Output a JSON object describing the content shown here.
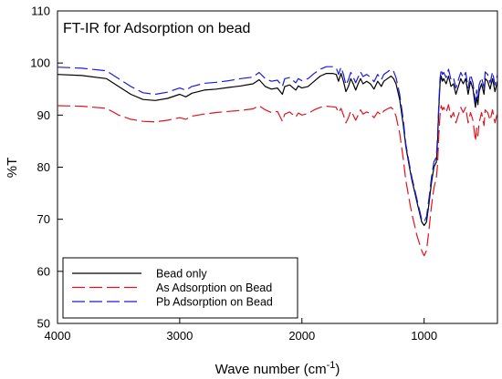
{
  "chart_data": {
    "type": "line",
    "title": "FT-IR for Adsorption on bead",
    "xlabel_main": "Wave number (cm",
    "xlabel_sup": "-1",
    "xlabel_close": ")",
    "ylabel": "%T",
    "xlim": [
      4000,
      400
    ],
    "ylim": [
      50,
      110
    ],
    "x_reversed": true,
    "x_ticks": [
      4000,
      3000,
      2000,
      1000
    ],
    "y_ticks": [
      50,
      60,
      70,
      80,
      90,
      100,
      110
    ],
    "x_tick_labels": [
      "4000",
      "3000",
      "2000",
      "1000"
    ],
    "y_tick_labels": [
      "50",
      "60",
      "70",
      "80",
      "90",
      "100",
      "110"
    ],
    "grid": false,
    "legend_position": "bottom-left",
    "series": [
      {
        "name": "Bead only",
        "color": "#000000",
        "dash": "solid",
        "points": [
          [
            4000,
            97.8
          ],
          [
            3800,
            97.6
          ],
          [
            3600,
            97.0
          ],
          [
            3500,
            95.5
          ],
          [
            3400,
            94.0
          ],
          [
            3300,
            93.0
          ],
          [
            3200,
            92.8
          ],
          [
            3100,
            93.2
          ],
          [
            3000,
            94.0
          ],
          [
            2950,
            93.5
          ],
          [
            2900,
            94.2
          ],
          [
            2800,
            94.8
          ],
          [
            2700,
            95.0
          ],
          [
            2600,
            95.3
          ],
          [
            2500,
            95.6
          ],
          [
            2400,
            96.0
          ],
          [
            2350,
            96.8
          ],
          [
            2300,
            95.5
          ],
          [
            2250,
            95.0
          ],
          [
            2200,
            95.2
          ],
          [
            2160,
            94.0
          ],
          [
            2140,
            95.5
          ],
          [
            2100,
            95.8
          ],
          [
            2050,
            94.8
          ],
          [
            2030,
            95.6
          ],
          [
            2000,
            95.2
          ],
          [
            1950,
            95.5
          ],
          [
            1900,
            96.5
          ],
          [
            1850,
            97.5
          ],
          [
            1800,
            98.0
          ],
          [
            1750,
            98.0
          ],
          [
            1720,
            97.8
          ],
          [
            1700,
            96.5
          ],
          [
            1680,
            98.0
          ],
          [
            1660,
            96.5
          ],
          [
            1640,
            94.5
          ],
          [
            1620,
            95.5
          ],
          [
            1600,
            97.0
          ],
          [
            1580,
            96.0
          ],
          [
            1560,
            94.8
          ],
          [
            1540,
            96.0
          ],
          [
            1520,
            97.0
          ],
          [
            1500,
            96.0
          ],
          [
            1470,
            96.5
          ],
          [
            1440,
            96.0
          ],
          [
            1410,
            95.0
          ],
          [
            1380,
            96.5
          ],
          [
            1350,
            95.5
          ],
          [
            1330,
            96.5
          ],
          [
            1300,
            97.0
          ],
          [
            1270,
            97.5
          ],
          [
            1250,
            97.0
          ],
          [
            1230,
            96.0
          ],
          [
            1200,
            93.0
          ],
          [
            1170,
            88.0
          ],
          [
            1150,
            84.0
          ],
          [
            1120,
            80.0
          ],
          [
            1100,
            77.5
          ],
          [
            1080,
            75.5
          ],
          [
            1060,
            73.5
          ],
          [
            1040,
            71.5
          ],
          [
            1020,
            69.5
          ],
          [
            1000,
            68.8
          ],
          [
            980,
            69.5
          ],
          [
            960,
            73.0
          ],
          [
            940,
            77.0
          ],
          [
            920,
            80.0
          ],
          [
            900,
            81.0
          ],
          [
            890,
            85.0
          ],
          [
            880,
            91.0
          ],
          [
            870,
            96.0
          ],
          [
            860,
            97.5
          ],
          [
            850,
            96.5
          ],
          [
            840,
            97.0
          ],
          [
            820,
            96.0
          ],
          [
            800,
            97.5
          ],
          [
            780,
            95.5
          ],
          [
            760,
            96.0
          ],
          [
            740,
            94.0
          ],
          [
            720,
            95.5
          ],
          [
            700,
            97.0
          ],
          [
            680,
            96.0
          ],
          [
            660,
            97.0
          ],
          [
            640,
            94.0
          ],
          [
            620,
            96.5
          ],
          [
            600,
            95.0
          ],
          [
            580,
            91.5
          ],
          [
            570,
            93.5
          ],
          [
            560,
            92.0
          ],
          [
            550,
            94.5
          ],
          [
            530,
            96.0
          ],
          [
            510,
            94.0
          ],
          [
            500,
            97.0
          ],
          [
            480,
            96.5
          ],
          [
            460,
            95.0
          ],
          [
            440,
            97.0
          ],
          [
            420,
            94.5
          ],
          [
            400,
            96.5
          ]
        ]
      },
      {
        "name": "As Adsorption on Bead",
        "color": "#e0141e",
        "dash": "long",
        "points": [
          [
            4000,
            91.8
          ],
          [
            3800,
            91.7
          ],
          [
            3600,
            91.3
          ],
          [
            3500,
            90.0
          ],
          [
            3400,
            89.2
          ],
          [
            3300,
            88.8
          ],
          [
            3200,
            88.7
          ],
          [
            3100,
            89.0
          ],
          [
            3000,
            89.5
          ],
          [
            2950,
            89.2
          ],
          [
            2900,
            89.8
          ],
          [
            2800,
            90.2
          ],
          [
            2700,
            90.5
          ],
          [
            2600,
            90.7
          ],
          [
            2500,
            90.9
          ],
          [
            2400,
            91.2
          ],
          [
            2350,
            91.8
          ],
          [
            2300,
            91.0
          ],
          [
            2250,
            90.5
          ],
          [
            2200,
            90.7
          ],
          [
            2160,
            88.8
          ],
          [
            2140,
            90.2
          ],
          [
            2100,
            90.6
          ],
          [
            2050,
            89.6
          ],
          [
            2030,
            90.4
          ],
          [
            2000,
            90.0
          ],
          [
            1950,
            90.3
          ],
          [
            1900,
            91.0
          ],
          [
            1850,
            91.5
          ],
          [
            1800,
            91.7
          ],
          [
            1750,
            91.6
          ],
          [
            1720,
            91.5
          ],
          [
            1700,
            90.5
          ],
          [
            1680,
            91.3
          ],
          [
            1660,
            90.0
          ],
          [
            1640,
            88.5
          ],
          [
            1620,
            89.5
          ],
          [
            1600,
            90.8
          ],
          [
            1580,
            90.0
          ],
          [
            1560,
            89.0
          ],
          [
            1540,
            90.0
          ],
          [
            1520,
            91.0
          ],
          [
            1500,
            90.2
          ],
          [
            1470,
            90.6
          ],
          [
            1440,
            90.3
          ],
          [
            1410,
            89.5
          ],
          [
            1380,
            90.6
          ],
          [
            1350,
            90.0
          ],
          [
            1330,
            90.8
          ],
          [
            1300,
            91.2
          ],
          [
            1270,
            91.5
          ],
          [
            1250,
            91.0
          ],
          [
            1230,
            89.8
          ],
          [
            1200,
            86.5
          ],
          [
            1170,
            81.5
          ],
          [
            1150,
            77.5
          ],
          [
            1120,
            73.5
          ],
          [
            1100,
            71.0
          ],
          [
            1080,
            69.0
          ],
          [
            1060,
            67.0
          ],
          [
            1040,
            65.5
          ],
          [
            1020,
            64.0
          ],
          [
            1000,
            63.0
          ],
          [
            980,
            64.0
          ],
          [
            960,
            68.0
          ],
          [
            940,
            72.5
          ],
          [
            920,
            76.0
          ],
          [
            900,
            78.0
          ],
          [
            890,
            80.5
          ],
          [
            880,
            86.0
          ],
          [
            870,
            90.0
          ],
          [
            860,
            91.8
          ],
          [
            850,
            91.0
          ],
          [
            840,
            91.5
          ],
          [
            820,
            90.5
          ],
          [
            800,
            92.0
          ],
          [
            780,
            89.5
          ],
          [
            760,
            90.5
          ],
          [
            740,
            88.5
          ],
          [
            720,
            90.0
          ],
          [
            700,
            91.5
          ],
          [
            680,
            90.5
          ],
          [
            660,
            91.5
          ],
          [
            640,
            88.5
          ],
          [
            620,
            90.5
          ],
          [
            600,
            89.0
          ],
          [
            580,
            85.0
          ],
          [
            570,
            87.5
          ],
          [
            560,
            86.0
          ],
          [
            550,
            88.5
          ],
          [
            530,
            90.5
          ],
          [
            510,
            88.0
          ],
          [
            500,
            91.0
          ],
          [
            480,
            90.5
          ],
          [
            460,
            89.0
          ],
          [
            440,
            91.0
          ],
          [
            420,
            88.5
          ],
          [
            400,
            90.5
          ]
        ]
      },
      {
        "name": "Pb Adsorption on Bead",
        "color": "#1a1adc",
        "dash": "long",
        "points": [
          [
            4000,
            99.2
          ],
          [
            3800,
            99.0
          ],
          [
            3600,
            98.5
          ],
          [
            3500,
            97.0
          ],
          [
            3400,
            95.5
          ],
          [
            3300,
            94.3
          ],
          [
            3200,
            94.0
          ],
          [
            3100,
            94.4
          ],
          [
            3000,
            95.2
          ],
          [
            2950,
            94.8
          ],
          [
            2900,
            95.5
          ],
          [
            2800,
            96.1
          ],
          [
            2700,
            96.3
          ],
          [
            2600,
            96.6
          ],
          [
            2500,
            97.0
          ],
          [
            2400,
            97.3
          ],
          [
            2350,
            98.2
          ],
          [
            2300,
            97.0
          ],
          [
            2250,
            96.5
          ],
          [
            2200,
            96.7
          ],
          [
            2160,
            95.5
          ],
          [
            2140,
            97.0
          ],
          [
            2100,
            97.2
          ],
          [
            2050,
            96.2
          ],
          [
            2030,
            97.0
          ],
          [
            2000,
            96.6
          ],
          [
            1950,
            97.0
          ],
          [
            1900,
            98.0
          ],
          [
            1850,
            98.8
          ],
          [
            1800,
            99.3
          ],
          [
            1750,
            99.3
          ],
          [
            1720,
            99.1
          ],
          [
            1700,
            97.8
          ],
          [
            1680,
            99.2
          ],
          [
            1660,
            97.8
          ],
          [
            1640,
            95.8
          ],
          [
            1620,
            96.8
          ],
          [
            1600,
            98.2
          ],
          [
            1580,
            97.3
          ],
          [
            1560,
            96.2
          ],
          [
            1540,
            97.3
          ],
          [
            1520,
            98.3
          ],
          [
            1500,
            97.4
          ],
          [
            1470,
            97.8
          ],
          [
            1440,
            97.3
          ],
          [
            1410,
            96.4
          ],
          [
            1380,
            97.8
          ],
          [
            1350,
            96.8
          ],
          [
            1330,
            97.8
          ],
          [
            1300,
            98.3
          ],
          [
            1270,
            98.8
          ],
          [
            1250,
            98.4
          ],
          [
            1230,
            97.2
          ],
          [
            1200,
            94.0
          ],
          [
            1170,
            89.0
          ],
          [
            1150,
            84.5
          ],
          [
            1120,
            80.5
          ],
          [
            1100,
            78.0
          ],
          [
            1080,
            76.0
          ],
          [
            1060,
            74.0
          ],
          [
            1040,
            72.0
          ],
          [
            1020,
            70.0
          ],
          [
            1000,
            69.5
          ],
          [
            980,
            70.5
          ],
          [
            960,
            74.0
          ],
          [
            940,
            78.0
          ],
          [
            920,
            81.0
          ],
          [
            900,
            82.0
          ],
          [
            890,
            86.0
          ],
          [
            880,
            92.0
          ],
          [
            870,
            97.0
          ],
          [
            860,
            98.8
          ],
          [
            850,
            97.8
          ],
          [
            840,
            98.2
          ],
          [
            820,
            97.2
          ],
          [
            800,
            98.8
          ],
          [
            780,
            96.8
          ],
          [
            760,
            97.2
          ],
          [
            740,
            95.2
          ],
          [
            720,
            96.8
          ],
          [
            700,
            98.2
          ],
          [
            680,
            97.2
          ],
          [
            660,
            98.2
          ],
          [
            640,
            95.2
          ],
          [
            620,
            97.8
          ],
          [
            600,
            96.2
          ],
          [
            580,
            92.5
          ],
          [
            570,
            94.8
          ],
          [
            560,
            93.2
          ],
          [
            550,
            95.8
          ],
          [
            530,
            97.2
          ],
          [
            510,
            95.2
          ],
          [
            500,
            98.3
          ],
          [
            480,
            97.8
          ],
          [
            460,
            96.2
          ],
          [
            440,
            98.3
          ],
          [
            420,
            95.8
          ],
          [
            400,
            97.8
          ]
        ]
      }
    ]
  }
}
